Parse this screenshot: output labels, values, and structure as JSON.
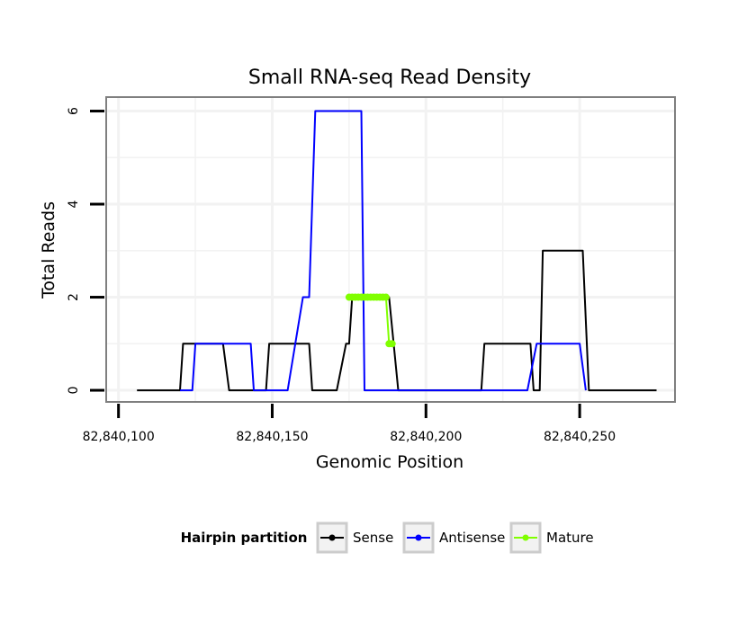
{
  "chart_data": {
    "type": "line",
    "title": "Small RNA-seq Read Density",
    "xlabel": "Genomic Position",
    "ylabel": "Total Reads",
    "xlim": [
      82840096,
      82840281
    ],
    "ylim": [
      -0.25,
      6.3
    ],
    "xticks": [
      82840100,
      82840150,
      82840200,
      82840250
    ],
    "xtick_labels": [
      "82,840,100",
      "82,840,150",
      "82,840,200",
      "82,840,250"
    ],
    "yticks": [
      0,
      2,
      4,
      6
    ],
    "ytick_labels": [
      "0",
      "2",
      "4",
      "6"
    ],
    "grid": true,
    "legend": {
      "title": "Hairpin partition",
      "position": "bottom",
      "entries": [
        "Sense",
        "Antisense",
        "Mature"
      ]
    },
    "series": [
      {
        "name": "Sense",
        "color": "#000000",
        "x": [
          82840106,
          82840120,
          82840121,
          82840134,
          82840136,
          82840148,
          82840149,
          82840162,
          82840163,
          82840171,
          82840174,
          82840175,
          82840176,
          82840188,
          82840191,
          82840218,
          82840219,
          82840234,
          82840235,
          82840237,
          82840238,
          82840251,
          82840253,
          82840275
        ],
        "y": [
          0,
          0,
          1,
          1,
          0,
          0,
          1,
          1,
          0,
          0,
          1,
          1,
          2,
          2,
          0,
          0,
          1,
          1,
          0,
          0,
          3,
          3,
          0,
          0
        ]
      },
      {
        "name": "Antisense",
        "color": "#0000ff",
        "x": [
          82840120,
          82840124,
          82840125,
          82840143,
          82840144,
          82840155,
          82840160,
          82840162,
          82840164,
          82840179,
          82840180,
          82840218,
          82840233,
          82840236,
          82840250,
          82840252
        ],
        "y": [
          0,
          0,
          1,
          1,
          0,
          0,
          2,
          2,
          6,
          6,
          0,
          0,
          0,
          1,
          1,
          0
        ]
      },
      {
        "name": "Mature",
        "color": "#80ff00",
        "x": [
          82840175,
          82840176,
          82840177,
          82840178,
          82840179,
          82840180,
          82840181,
          82840182,
          82840183,
          82840184,
          82840185,
          82840186,
          82840187,
          82840188,
          82840189
        ],
        "y": [
          2,
          2,
          2,
          2,
          2,
          2,
          2,
          2,
          2,
          2,
          2,
          2,
          2,
          1,
          1
        ]
      }
    ]
  }
}
